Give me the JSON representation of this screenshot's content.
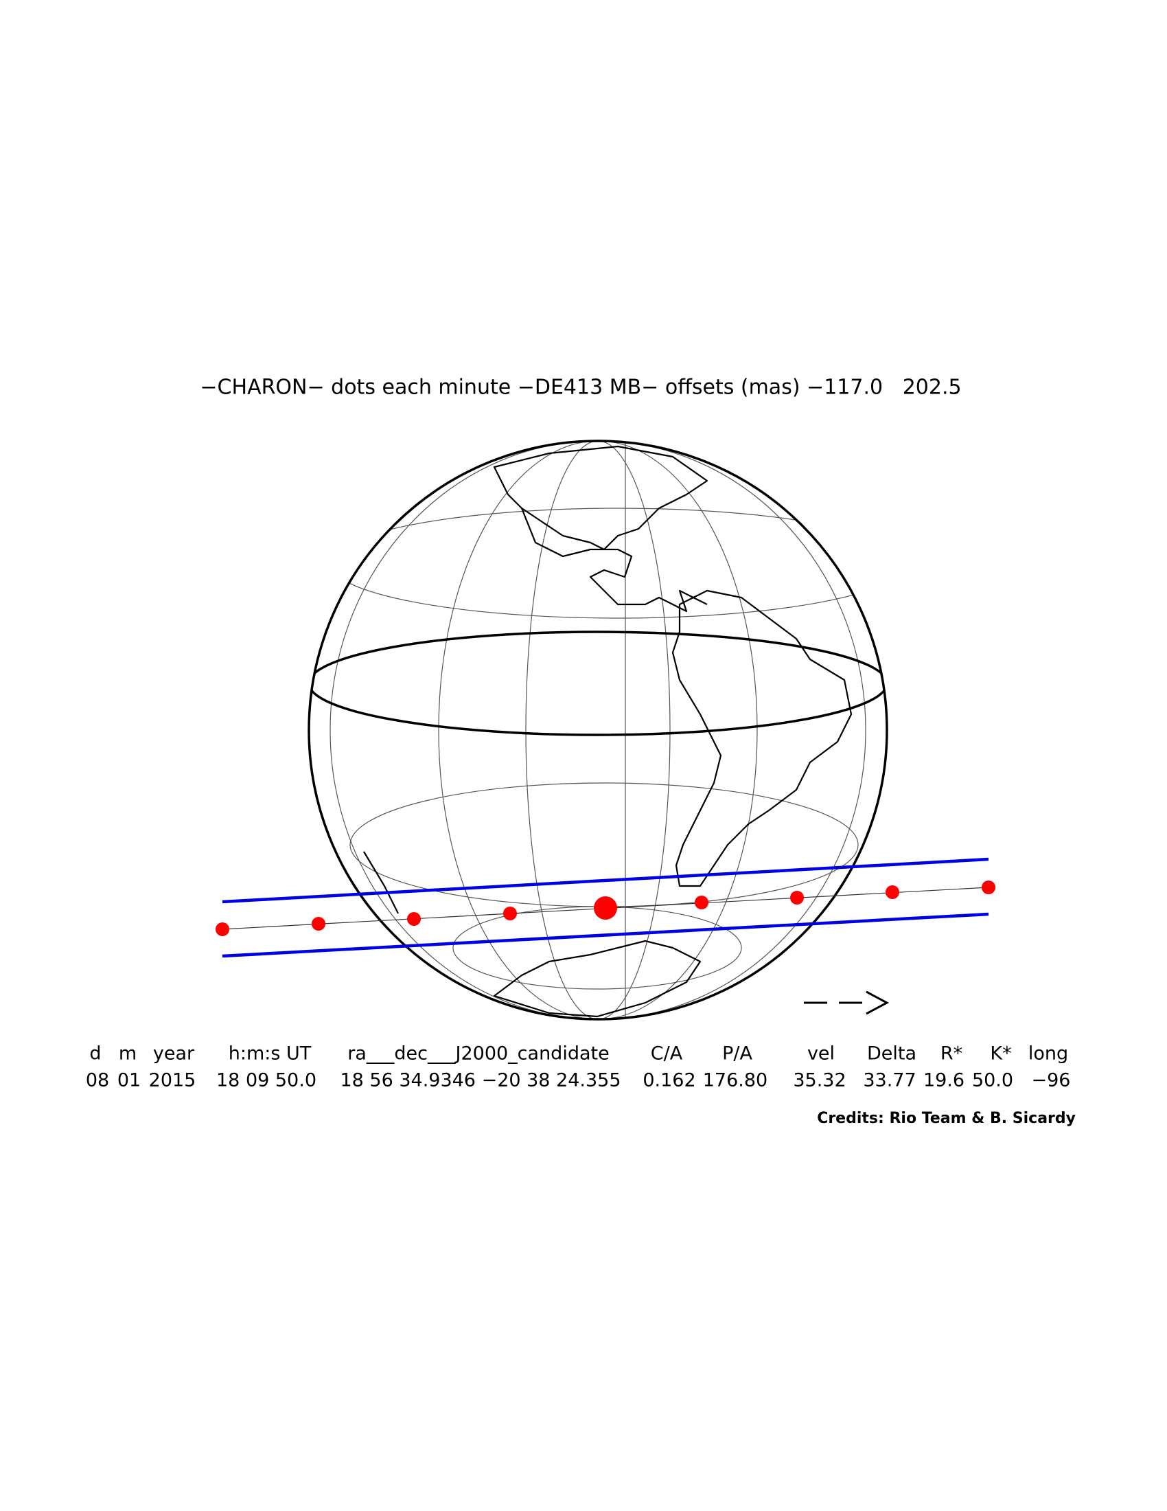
{
  "title": "−CHARON− dots each minute −DE413 MB− offsets (mas) −117.0   202.5",
  "table": {
    "headers": [
      "d",
      "m",
      "year",
      "h:m:s UT",
      "ra___dec___J2000_candidate",
      "C/A",
      "P/A",
      "vel",
      "Delta",
      "R*",
      "K*",
      "long"
    ],
    "rows": [
      [
        "08",
        "01",
        "2015",
        "18 09 50.0",
        "18 56 34.9346 −20 38 24.355",
        "0.162",
        "176.80",
        "35.32",
        "33.77",
        "19.6",
        "50.0",
        "−96"
      ]
    ]
  },
  "credits": "Credits: Rio Team & B. Sicardy"
}
